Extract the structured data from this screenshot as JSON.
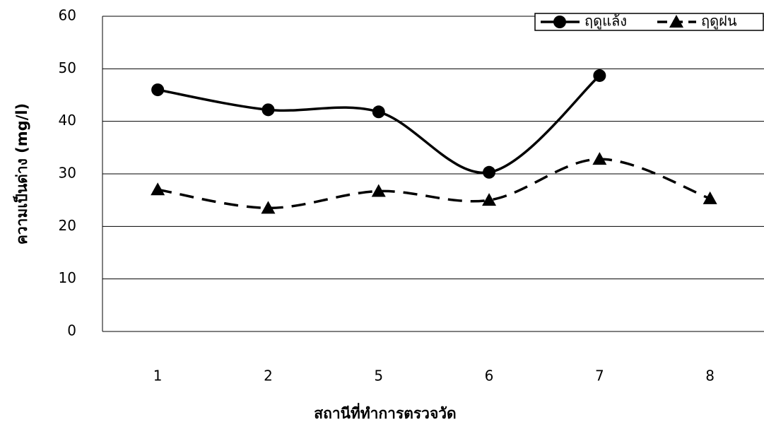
{
  "chart_data": {
    "type": "line",
    "x_label": "สถานีที่ทำการตรวจวัด",
    "y_label": "ความเป็นด่าง (mg/l)",
    "categories": [
      "1",
      "2",
      "5",
      "6",
      "7",
      "8"
    ],
    "series": [
      {
        "name": "ฤดูแล้ง",
        "color": "#000000",
        "line_style": "solid",
        "marker": "circle",
        "values": [
          46,
          42.2,
          41.8,
          30.3,
          48.7,
          null
        ]
      },
      {
        "name": "ฤดูฝน",
        "color": "#000000",
        "line_style": "dashed",
        "marker": "triangle",
        "values": [
          27,
          23.5,
          26.7,
          25,
          32.8,
          25.3
        ]
      }
    ],
    "ylim": [
      0,
      60
    ],
    "yticks": [
      0,
      10,
      20,
      30,
      40,
      50,
      60
    ],
    "grid": true,
    "smooth": true,
    "legend": "top-right"
  }
}
